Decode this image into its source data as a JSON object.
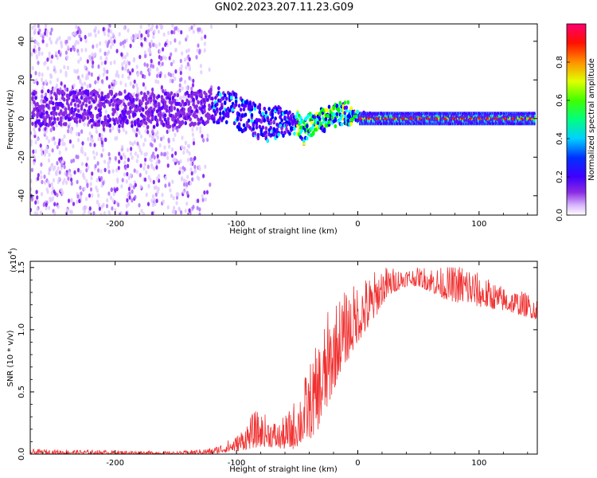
{
  "title": "GN02.2023.207.11.23.G09",
  "chart_data": [
    {
      "type": "heatmap",
      "xlabel": "Height of straight line (km)",
      "ylabel": "Frequency (Hz)",
      "xlim": [
        -270,
        148
      ],
      "ylim": [
        -50,
        49
      ],
      "xticks": [
        -200,
        -100,
        0,
        100
      ],
      "xtick_labels": [
        "-200",
        "-100",
        "0",
        "100"
      ],
      "yticks": [
        -40,
        -20,
        0,
        20,
        40
      ],
      "ytick_labels": [
        "-40",
        "-20",
        "0",
        "20",
        "40"
      ],
      "colorbar": {
        "label": "Normalized spectral amplitude",
        "range": [
          0,
          1
        ],
        "ticks": [
          0,
          0.2,
          0.4,
          0.6,
          0.8
        ],
        "tick_labels": [
          "0.0",
          "0.2",
          "0.4",
          "0.6",
          "0.8"
        ],
        "colors": [
          "#ffffff",
          "#d9b8ff",
          "#8a2be2",
          "#5a00ff",
          "#0000ff",
          "#00ffff",
          "#00ff00",
          "#ffff00",
          "#ff8000",
          "#ff0000",
          "#ff0080"
        ]
      },
      "ridge": {
        "x": [
          -270,
          -240,
          -200,
          -160,
          -130,
          -110,
          -100,
          -90,
          -80,
          -70,
          -60,
          -50,
          -45,
          -40,
          -30,
          -20,
          -10,
          0,
          20,
          60,
          100,
          148
        ],
        "y": [
          5,
          6,
          5,
          4,
          6,
          7,
          4,
          0,
          -2,
          -3,
          -2,
          -2,
          -8,
          -3,
          -1,
          1,
          3,
          1,
          0,
          0,
          0,
          0
        ]
      }
    },
    {
      "type": "line",
      "xlabel": "Height of straight line (km)",
      "ylabel": "SNR (10 * v/v)",
      "scale_label": "(x10",
      "scale_exp": "4",
      "scale_close": ")",
      "xlim": [
        -270,
        148
      ],
      "ylim": [
        0,
        1.55
      ],
      "xticks": [
        -200,
        -100,
        0,
        100
      ],
      "xtick_labels": [
        "-200",
        "-100",
        "0",
        "100"
      ],
      "yticks": [
        0,
        0.5,
        1.0,
        1.5
      ],
      "ytick_labels": [
        "0.0",
        "0.5",
        "1.0",
        "1.5"
      ],
      "color": "#f03030",
      "envelope": {
        "x": [
          -270,
          -200,
          -150,
          -120,
          -100,
          -85,
          -75,
          -65,
          -55,
          -45,
          -35,
          -25,
          -15,
          -5,
          0,
          10,
          20,
          30,
          40,
          50,
          60,
          70,
          80,
          90,
          100,
          120,
          140,
          148
        ],
        "y_min": [
          0.0,
          0.0,
          0.0,
          0.0,
          0.02,
          0.05,
          0.06,
          0.04,
          0.03,
          0.08,
          0.15,
          0.35,
          0.65,
          0.8,
          0.9,
          1.0,
          1.2,
          1.3,
          1.35,
          1.35,
          1.3,
          1.25,
          1.22,
          1.2,
          1.18,
          1.15,
          1.1,
          1.08
        ],
        "y_max": [
          0.04,
          0.03,
          0.02,
          0.05,
          0.15,
          0.35,
          0.32,
          0.25,
          0.38,
          0.6,
          0.85,
          1.15,
          1.28,
          1.35,
          1.4,
          1.45,
          1.52,
          1.5,
          1.5,
          1.5,
          1.52,
          1.5,
          1.52,
          1.55,
          1.45,
          1.35,
          1.3,
          1.25
        ]
      }
    }
  ]
}
